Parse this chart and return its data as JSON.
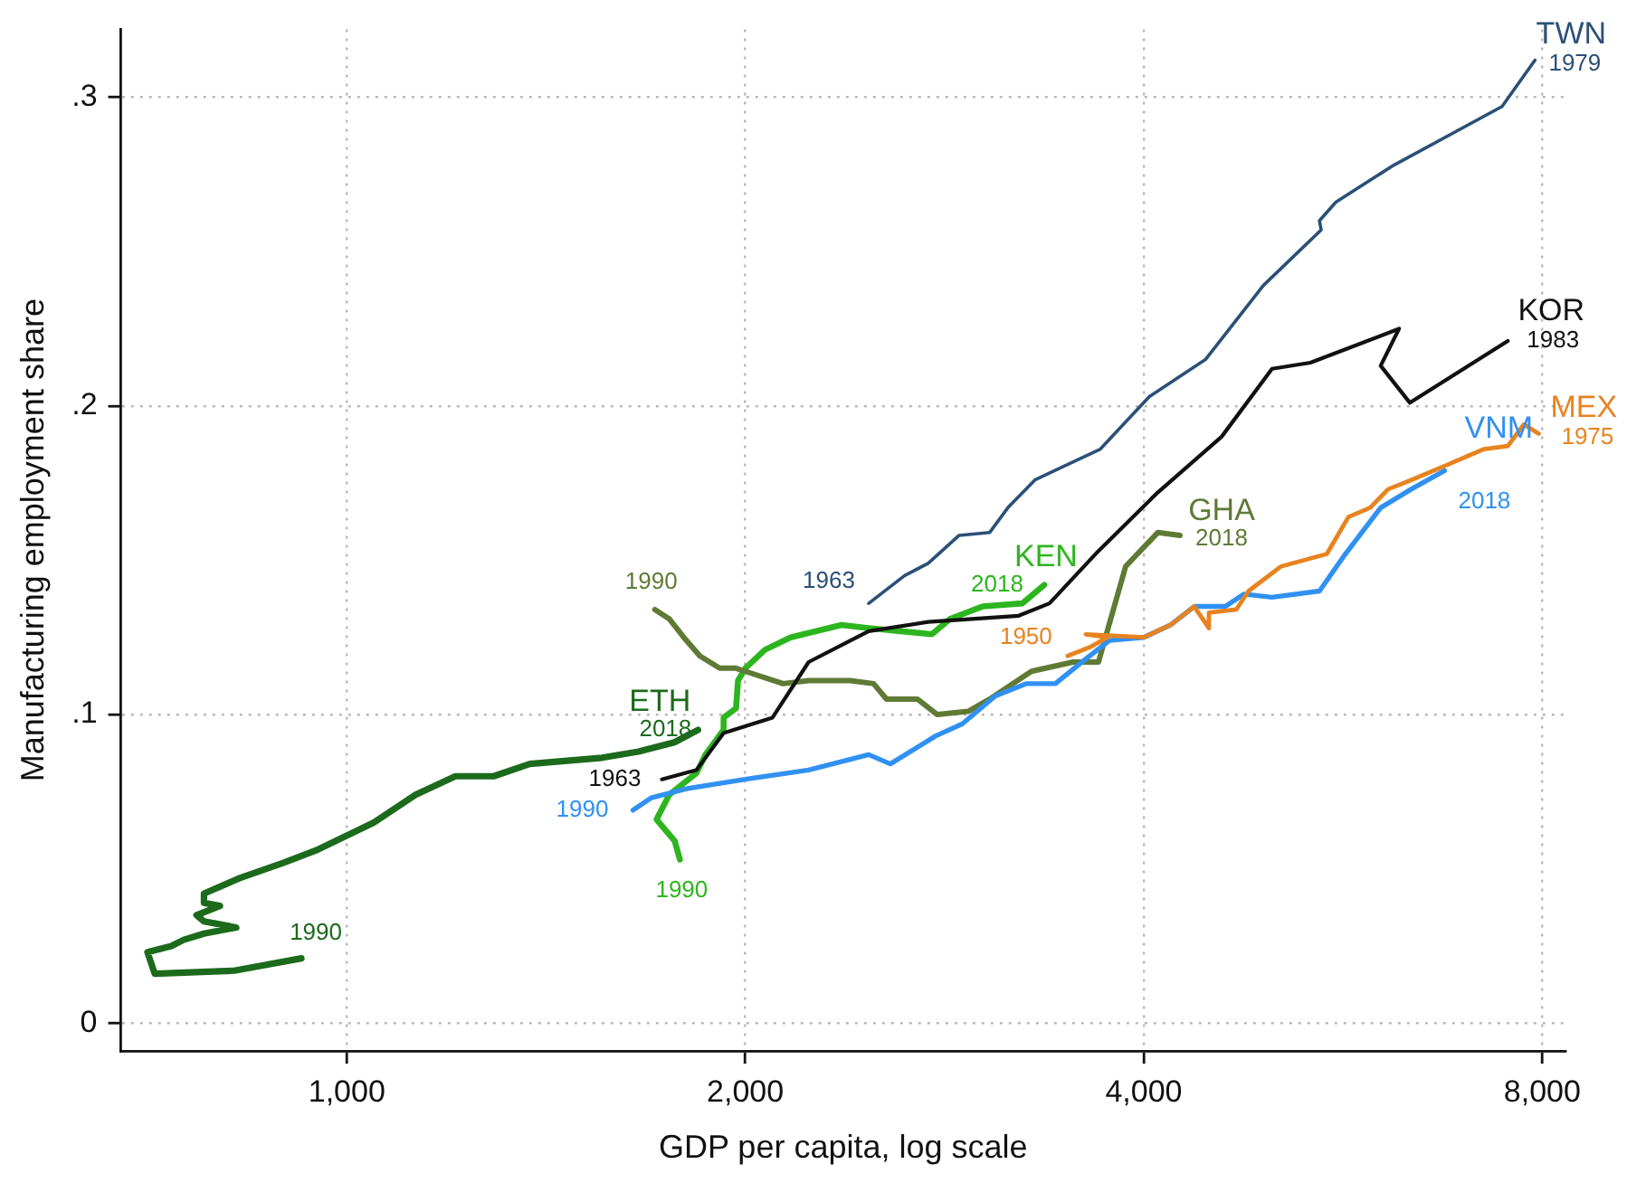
{
  "chart_data": {
    "type": "line",
    "xlabel": "GDP per capita, log scale",
    "ylabel": "Manufacturing employment share",
    "log": "x",
    "grid": true,
    "legend": false,
    "marker": "none",
    "line_style": "solid",
    "xlim": [
      675,
      8330
    ],
    "xticks": [
      {
        "value": 1000,
        "label": "1,000"
      },
      {
        "value": 2000,
        "label": "2,000"
      },
      {
        "value": 4000,
        "label": "4,000"
      },
      {
        "value": 8000,
        "label": "8,000"
      }
    ],
    "ylim": [
      -0.009,
      0.322
    ],
    "yticks": [
      0,
      {
        "value": 0.1,
        "label": ".1"
      },
      {
        "value": 0.2,
        "label": ".2"
      },
      {
        "value": 0.3,
        "label": ".3"
      }
    ],
    "series": [
      {
        "name": "TWN",
        "color": "#2b5077",
        "x": [
          2479,
          2639,
          2749,
          2900,
          3060,
          3158,
          3310,
          3709,
          4039,
          4453,
          4925,
          5446,
          5430,
          5587,
          6180,
          7460,
          7900
        ],
        "values": [
          0.136,
          0.145,
          0.149,
          0.158,
          0.159,
          0.167,
          0.176,
          0.186,
          0.203,
          0.215,
          0.239,
          0.257,
          0.26,
          0.266,
          0.278,
          0.297,
          0.312
        ]
      },
      {
        "name": "KOR",
        "color": "#111111",
        "x": [
          1730,
          1837,
          1926,
          2097,
          2233,
          2479,
          2749,
          3218,
          3395,
          3697,
          4100,
          4580,
          5000,
          5345,
          6237,
          6040,
          6355,
          7535
        ],
        "values": [
          0.079,
          0.082,
          0.094,
          0.099,
          0.117,
          0.127,
          0.13,
          0.132,
          0.136,
          0.153,
          0.172,
          0.19,
          0.212,
          0.214,
          0.225,
          0.213,
          0.201,
          0.221
        ]
      },
      {
        "name": "MEX",
        "color": "#e8831f",
        "x": [
          3504,
          3650,
          3755,
          3617,
          4000,
          4190,
          4367,
          4480,
          4480,
          4698,
          4800,
          5080,
          5500,
          5710,
          5930,
          6120,
          6370,
          6790,
          7230,
          7535,
          7750,
          7950
        ],
        "values": [
          0.119,
          0.122,
          0.125,
          0.126,
          0.125,
          0.129,
          0.135,
          0.128,
          0.133,
          0.134,
          0.14,
          0.148,
          0.152,
          0.164,
          0.167,
          0.173,
          0.176,
          0.181,
          0.186,
          0.187,
          0.194,
          0.191
        ]
      },
      {
        "name": "VNM",
        "color": "#3091f2",
        "x": [
          1645,
          1698,
          1808,
          2000,
          2233,
          2479,
          2574,
          2784,
          2918,
          3090,
          3260,
          3430,
          3616,
          3768,
          4000,
          4190,
          4367,
          4610,
          4760,
          5000,
          5430,
          5680,
          6040,
          6370,
          6750
        ],
        "values": [
          0.069,
          0.073,
          0.076,
          0.079,
          0.082,
          0.087,
          0.084,
          0.093,
          0.097,
          0.106,
          0.11,
          0.11,
          0.118,
          0.124,
          0.125,
          0.129,
          0.135,
          0.135,
          0.139,
          0.138,
          0.14,
          0.152,
          0.167,
          0.173,
          0.179
        ]
      },
      {
        "name": "GHA",
        "color": "#5f7a35",
        "x": [
          1709,
          1752,
          1797,
          1848,
          1913,
          1968,
          2000,
          2136,
          2233,
          2400,
          2500,
          2557,
          2698,
          2793,
          2947,
          3060,
          3290,
          3537,
          3697,
          3876,
          4100,
          4260
        ],
        "values": [
          0.134,
          0.131,
          0.125,
          0.119,
          0.115,
          0.115,
          0.114,
          0.11,
          0.111,
          0.111,
          0.11,
          0.105,
          0.105,
          0.1,
          0.101,
          0.105,
          0.114,
          0.117,
          0.117,
          0.148,
          0.159,
          0.158
        ]
      },
      {
        "name": "KEN",
        "color": "#2db51f",
        "x": [
          1785,
          1769,
          1714,
          1752,
          1837,
          1866,
          1926,
          1926,
          1968,
          1975,
          2000,
          2070,
          2164,
          2364,
          2479,
          2767,
          2856,
          3021,
          3238,
          3364
        ],
        "values": [
          0.053,
          0.059,
          0.066,
          0.074,
          0.081,
          0.087,
          0.095,
          0.099,
          0.102,
          0.111,
          0.115,
          0.121,
          0.125,
          0.129,
          0.128,
          0.126,
          0.131,
          0.135,
          0.136,
          0.142
        ]
      },
      {
        "name": "ETH",
        "color": "#1c6a1c",
        "x": [
          924,
          822,
          716,
          707,
          737,
          753,
          780,
          825,
          780,
          770,
          802,
          780,
          780,
          830,
          896,
          948,
          1048,
          1127,
          1208,
          1291,
          1375,
          1559,
          1661,
          1768,
          1842
        ],
        "values": [
          0.021,
          0.017,
          0.016,
          0.023,
          0.025,
          0.027,
          0.029,
          0.031,
          0.033,
          0.035,
          0.038,
          0.039,
          0.042,
          0.047,
          0.052,
          0.056,
          0.065,
          0.074,
          0.08,
          0.08,
          0.084,
          0.086,
          0.088,
          0.091,
          0.095
        ]
      }
    ],
    "annotations": [
      {
        "text": "1963",
        "x": 2479,
        "y": 0.136
      },
      {
        "text": "1979",
        "x": 7900,
        "y": 0.312
      },
      {
        "text": "1963",
        "x": 1730,
        "y": 0.079
      },
      {
        "text": "1983",
        "x": 7535,
        "y": 0.221
      },
      {
        "text": "1950",
        "x": 3504,
        "y": 0.119
      },
      {
        "text": "1975",
        "x": 7950,
        "y": 0.191
      },
      {
        "text": "1990",
        "x": 1645,
        "y": 0.069
      },
      {
        "text": "2018",
        "x": 6750,
        "y": 0.179
      },
      {
        "text": "1990",
        "x": 1709,
        "y": 0.134
      },
      {
        "text": "2018",
        "x": 4260,
        "y": 0.158
      },
      {
        "text": "1990",
        "x": 1785,
        "y": 0.053
      },
      {
        "text": "2018",
        "x": 3364,
        "y": 0.142
      },
      {
        "text": "1990",
        "x": 924,
        "y": 0.021
      },
      {
        "text": "2018",
        "x": 1842,
        "y": 0.095
      }
    ]
  }
}
